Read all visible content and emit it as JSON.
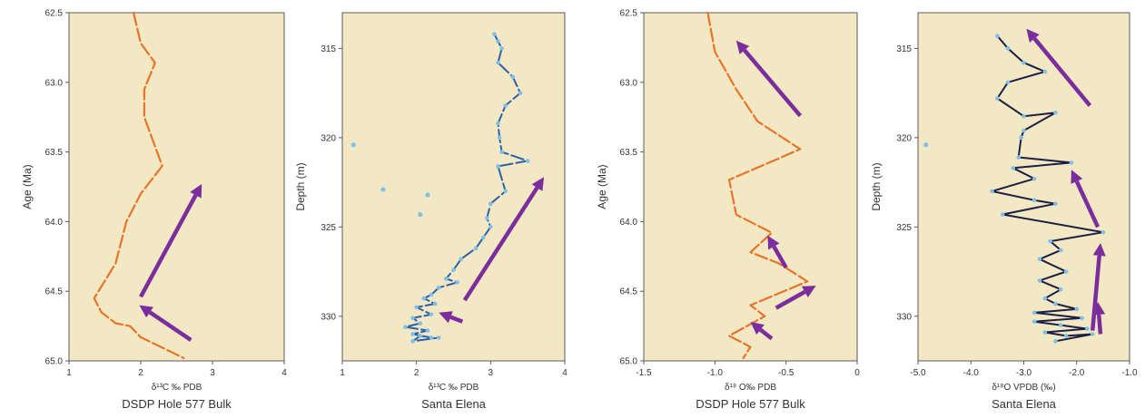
{
  "colors": {
    "panel_bg": "#f3e8c4",
    "orange_line": "#e8742a",
    "blue_line": "#2e5fa8",
    "navy_line": "#1c1f45",
    "point_marker": "#7fc0ea",
    "arrow": "#7b2d9e"
  },
  "chart_data": [
    {
      "type": "line",
      "title": "",
      "caption": "DSDP Hole 577 Bulk",
      "xlabel": "δ¹³C ‰ PDB",
      "ylabel": "Age (Ma)",
      "xlim": [
        1,
        4
      ],
      "ylim": [
        62.5,
        65.0
      ],
      "y_inverted": true,
      "xticks": [
        "1",
        "2",
        "3",
        "4"
      ],
      "yticks": [
        "62.5",
        "63.0",
        "63.5",
        "64.0",
        "64.5",
        "65.0"
      ],
      "series": [
        {
          "line_style": "dashed",
          "x": [
            1.9,
            2.0,
            2.2,
            2.05,
            2.05,
            2.3,
            2.0,
            1.8,
            1.65,
            1.35,
            1.45,
            1.65,
            1.85,
            2.0,
            2.6
          ],
          "y": [
            62.5,
            62.72,
            62.86,
            63.05,
            63.25,
            63.6,
            63.8,
            64.0,
            64.3,
            64.55,
            64.65,
            64.73,
            64.75,
            64.83,
            64.98
          ]
        }
      ],
      "arrows": [
        {
          "x": [
            2.0,
            2.85
          ],
          "y": [
            64.54,
            63.73
          ]
        },
        {
          "x": [
            2.7,
            1.98
          ],
          "y": [
            64.85,
            64.6
          ]
        }
      ]
    },
    {
      "type": "line",
      "title": "",
      "caption": "Santa Elena",
      "xlabel": "δ¹³C ‰ PDB",
      "ylabel": "Depth (m)",
      "xlim": [
        1,
        4
      ],
      "ylim": [
        313,
        332.5
      ],
      "y_inverted": true,
      "xticks": [
        "1",
        "2",
        "3",
        "4"
      ],
      "yticks": [
        "315",
        "320",
        "325",
        "330"
      ],
      "series": [
        {
          "line_style": "dashed",
          "x": [
            3.05,
            3.1,
            3.15,
            3.1,
            3.3,
            3.4,
            3.2,
            3.1,
            3.12,
            3.15,
            3.5,
            3.1,
            3.2,
            3.0,
            2.95,
            3.0,
            2.9,
            2.8,
            2.6,
            2.5,
            2.4,
            2.55,
            2.3,
            2.2,
            2.1,
            2.25,
            2.0,
            2.2,
            1.95,
            2.05,
            1.85,
            2.15,
            1.95,
            2.2,
            2.05,
            1.95,
            2.3
          ],
          "y": [
            314.2,
            314.6,
            315.0,
            315.8,
            316.6,
            317.5,
            318.2,
            319.2,
            320.0,
            320.8,
            321.3,
            321.6,
            323.0,
            323.7,
            324.5,
            325.0,
            325.6,
            326.2,
            326.8,
            327.4,
            327.9,
            328.1,
            328.4,
            328.8,
            329.0,
            329.3,
            329.5,
            329.9,
            330.1,
            330.4,
            330.6,
            330.8,
            331.0,
            331.2,
            331.1,
            331.4,
            331.2
          ]
        }
      ],
      "outliers": {
        "x": [
          1.15,
          1.55,
          2.15,
          2.05
        ],
        "y": [
          320.4,
          322.9,
          323.2,
          324.3
        ]
      },
      "arrows": [
        {
          "x": [
            2.65,
            3.72
          ],
          "y": [
            329.1,
            322.2
          ]
        },
        {
          "x": [
            2.62,
            2.3
          ],
          "y": [
            330.3,
            329.8
          ]
        }
      ]
    },
    {
      "type": "line",
      "title": "",
      "caption": "DSDP Hole 577 Bulk",
      "xlabel": "δ¹⁸ O‰ PDB",
      "ylabel": "Age (Ma)",
      "xlim": [
        -1.5,
        0
      ],
      "ylim": [
        62.5,
        65.0
      ],
      "y_inverted": true,
      "xticks": [
        "-1.5",
        "-1.0",
        "-0.5",
        "0"
      ],
      "yticks": [
        "62.5",
        "63.0",
        "63.5",
        "64.0",
        "64.5",
        "65.0"
      ],
      "series": [
        {
          "line_style": "dashed",
          "x": [
            -1.05,
            -1.0,
            -0.85,
            -0.7,
            -0.4,
            -0.9,
            -0.85,
            -0.6,
            -0.75,
            -0.55,
            -0.35,
            -0.75,
            -0.65,
            -0.9,
            -0.75,
            -0.8
          ],
          "y": [
            62.5,
            62.78,
            63.05,
            63.28,
            63.48,
            63.7,
            63.95,
            64.08,
            64.22,
            64.3,
            64.43,
            64.6,
            64.68,
            64.82,
            64.9,
            64.98
          ]
        }
      ],
      "arrows": [
        {
          "x": [
            -0.4,
            -0.85
          ],
          "y": [
            63.24,
            62.7
          ]
        },
        {
          "x": [
            -0.5,
            -0.63
          ],
          "y": [
            64.33,
            64.1
          ]
        },
        {
          "x": [
            -0.57,
            -0.29
          ],
          "y": [
            64.62,
            64.46
          ]
        },
        {
          "x": [
            -0.6,
            -0.75
          ],
          "y": [
            64.84,
            64.72
          ]
        }
      ]
    },
    {
      "type": "line",
      "title": "",
      "caption": "Santa Elena",
      "xlabel": "δ¹⁸O VPDB (‰)",
      "ylabel": "Depth (m)",
      "xlim": [
        -5.0,
        -1.0
      ],
      "ylim": [
        313,
        332.5
      ],
      "y_inverted": true,
      "xticks": [
        "-5.0",
        "-4.0",
        "-3.0",
        "-2.0",
        "-1.0"
      ],
      "yticks": [
        "315",
        "320",
        "325",
        "330"
      ],
      "series": [
        {
          "line_style": "solid",
          "x": [
            -3.5,
            -3.3,
            -3.0,
            -2.6,
            -3.3,
            -3.5,
            -3.0,
            -2.4,
            -3.0,
            -3.05,
            -3.1,
            -2.1,
            -3.2,
            -2.8,
            -3.6,
            -2.8,
            -2.4,
            -3.4,
            -1.5,
            -2.5,
            -2.3,
            -2.7,
            -2.2,
            -2.7,
            -2.3,
            -2.6,
            -2.4,
            -2.0,
            -2.8,
            -1.9,
            -2.8,
            -2.3,
            -1.8,
            -2.6,
            -2.2,
            -1.7,
            -2.4
          ],
          "y": [
            314.3,
            315.0,
            315.8,
            316.3,
            316.9,
            317.8,
            318.8,
            318.6,
            319.6,
            320.0,
            321.1,
            321.4,
            321.7,
            322.3,
            323.0,
            323.5,
            323.7,
            324.3,
            325.3,
            325.8,
            326.3,
            326.8,
            327.5,
            328.0,
            328.5,
            329.0,
            329.3,
            329.6,
            329.8,
            330.1,
            330.3,
            330.5,
            330.7,
            330.9,
            331.1,
            331.0,
            331.4
          ]
        }
      ],
      "outliers": {
        "x": [
          -4.85
        ],
        "y": [
          320.4
        ]
      },
      "arrows": [
        {
          "x": [
            -1.75,
            -2.95
          ],
          "y": [
            318.2,
            313.9
          ]
        },
        {
          "x": [
            -1.6,
            -2.1
          ],
          "y": [
            325.0,
            321.8
          ]
        },
        {
          "x": [
            -1.7,
            -1.55
          ],
          "y": [
            330.8,
            325.9
          ]
        },
        {
          "x": [
            -1.55,
            -1.6
          ],
          "y": [
            331.0,
            329.2
          ]
        }
      ]
    }
  ]
}
